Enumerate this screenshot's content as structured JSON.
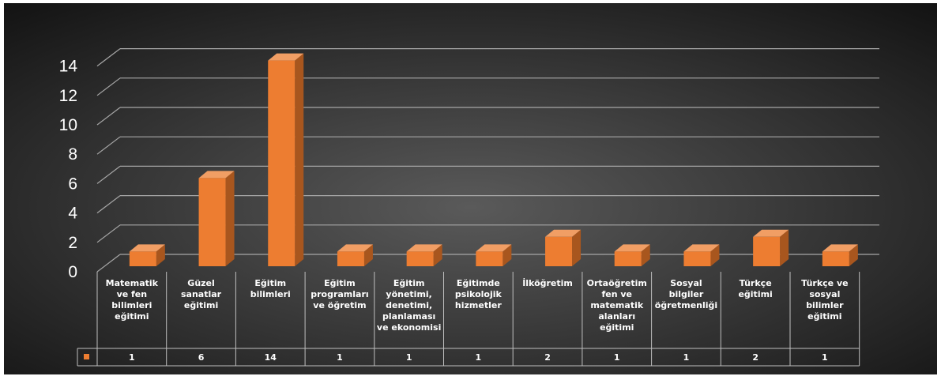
{
  "colors": {
    "bar_front": "#ED7D31",
    "bar_side": "#A8561E",
    "bar_top": "#F19E64",
    "grid": "#A6A6A6",
    "table_border": "#BFBFBF",
    "text": "#FFFFFF",
    "bg_center": "#5a5a5a",
    "bg_edge": "#121212"
  },
  "chart_data": {
    "type": "bar",
    "style": "3d-column",
    "title": "",
    "xlabel": "",
    "ylabel": "",
    "ylim": [
      0,
      14
    ],
    "yticks": [
      0,
      2,
      4,
      6,
      8,
      10,
      12,
      14
    ],
    "grid": true,
    "legend": "data-table",
    "categories": [
      [
        "Matematik",
        "ve fen",
        "bilimleri",
        "eğitimi"
      ],
      [
        "Güzel",
        "sanatlar",
        "eğitimi"
      ],
      [
        "Eğitim",
        "bilimleri"
      ],
      [
        "Eğitim",
        "programları",
        "ve öğretim"
      ],
      [
        "Eğitim",
        "yönetimi,",
        "denetimi,",
        "planlaması",
        "ve ekonomisi"
      ],
      [
        "Eğitimde",
        "psikolojik",
        "hizmetler"
      ],
      [
        "İlköğretim"
      ],
      [
        "Ortaöğretim",
        "fen ve",
        "matematik",
        "alanları",
        "eğitimi"
      ],
      [
        "Sosyal",
        "bilgiler",
        "öğretmenliği"
      ],
      [
        "Türkçe",
        "eğitimi"
      ],
      [
        "Türkçe ve",
        "sosyal",
        "bilimler",
        "eğitimi"
      ]
    ],
    "values": [
      1,
      6,
      14,
      1,
      1,
      1,
      2,
      1,
      1,
      2,
      1
    ]
  }
}
